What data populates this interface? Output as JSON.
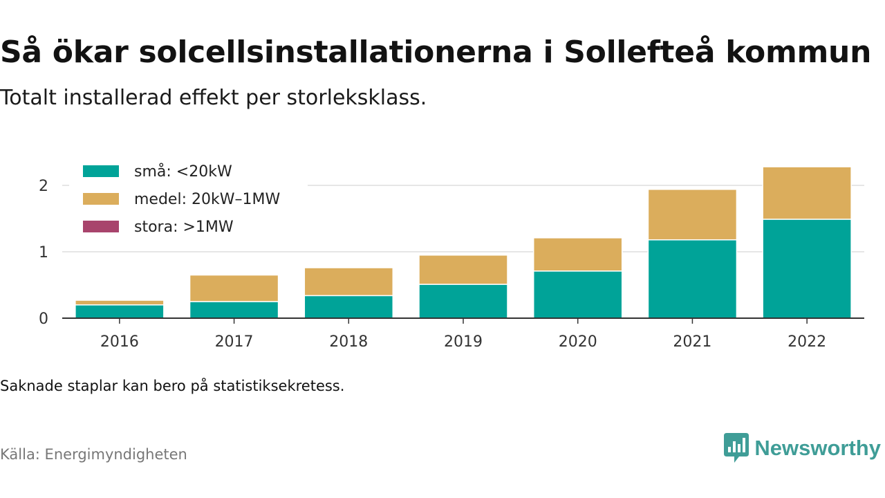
{
  "header": {
    "title": "Så ökar solcellsinstallationerna i Sollefteå kommun",
    "subtitle": "Totalt installerad effekt per storleksklass."
  },
  "chart_data": {
    "type": "bar",
    "stacked": true,
    "categories": [
      "2016",
      "2017",
      "2018",
      "2019",
      "2020",
      "2021",
      "2022"
    ],
    "series": [
      {
        "name": "små: <20kW",
        "color": "#00a398",
        "values": [
          0.2,
          0.25,
          0.34,
          0.51,
          0.71,
          1.18,
          1.49
        ]
      },
      {
        "name": "medel: 20kW–1MW",
        "color": "#dbad5c",
        "values": [
          0.07,
          0.4,
          0.42,
          0.44,
          0.5,
          0.76,
          0.79
        ]
      },
      {
        "name": "stora: >1MW",
        "color": "#a8446c",
        "values": [
          0,
          0,
          0,
          0,
          0,
          0,
          0
        ]
      }
    ],
    "y_ticks": [
      "0",
      "1",
      "2"
    ],
    "ylim": [
      0,
      2.3
    ],
    "grid": true,
    "legend_position": "top-left"
  },
  "footer": {
    "note": "Saknade staplar kan bero på statistiksekretess.",
    "source": "Källa: Energimyndigheten",
    "brand": "Newsworthy",
    "brand_color": "#3f9d97"
  }
}
